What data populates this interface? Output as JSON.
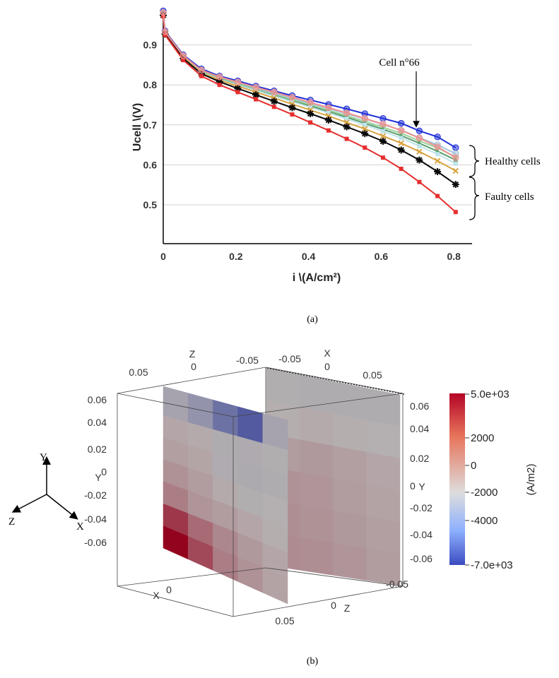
{
  "chart_data": [
    {
      "type": "line",
      "panel_label": "(a)",
      "xlabel": "i \\(A/cm²)",
      "ylabel": "Ucell \\(V)",
      "xlim": [
        0,
        0.85
      ],
      "ylim": [
        0.4,
        1.0
      ],
      "x_ticks": [
        0,
        0.2,
        0.4,
        0.6,
        0.8
      ],
      "x_tick_labels": [
        "0",
        "0.2",
        "0.4",
        "0.6",
        "0.8"
      ],
      "y_ticks": [
        0.5,
        0.6,
        0.7,
        0.8,
        0.9
      ],
      "y_tick_labels": [
        "0.5",
        "0.6",
        "0.7",
        "0.8",
        "0.9"
      ],
      "grid": "horizontal",
      "x": [
        0,
        0.005,
        0.055,
        0.105,
        0.155,
        0.205,
        0.255,
        0.305,
        0.355,
        0.405,
        0.455,
        0.505,
        0.555,
        0.605,
        0.655,
        0.705,
        0.755,
        0.805
      ],
      "series": [
        {
          "marker": "circle",
          "color": "#1f2fd6",
          "values": [
            0.985,
            0.935,
            0.875,
            0.84,
            0.822,
            0.81,
            0.797,
            0.785,
            0.773,
            0.762,
            0.751,
            0.74,
            0.728,
            0.716,
            0.704,
            0.685,
            0.67,
            0.643
          ]
        },
        {
          "marker": "circle",
          "color": "#a3c4dd",
          "values": [
            0.98,
            0.932,
            0.872,
            0.836,
            0.818,
            0.805,
            0.792,
            0.779,
            0.766,
            0.754,
            0.741,
            0.728,
            0.715,
            0.701,
            0.687,
            0.668,
            0.65,
            0.628
          ]
        },
        {
          "marker": "diamond",
          "color": "#9bd29b",
          "values": [
            0.978,
            0.931,
            0.871,
            0.834,
            0.816,
            0.803,
            0.789,
            0.776,
            0.763,
            0.75,
            0.737,
            0.723,
            0.709,
            0.694,
            0.679,
            0.66,
            0.642,
            0.62
          ]
        },
        {
          "marker": "triangle",
          "color": "#5b9e6e",
          "values": [
            0.977,
            0.93,
            0.87,
            0.833,
            0.815,
            0.801,
            0.787,
            0.774,
            0.76,
            0.747,
            0.733,
            0.719,
            0.704,
            0.689,
            0.673,
            0.654,
            0.634,
            0.612
          ]
        },
        {
          "marker": "square",
          "color": "#bfe3ea",
          "values": [
            0.976,
            0.929,
            0.869,
            0.832,
            0.814,
            0.8,
            0.786,
            0.772,
            0.758,
            0.744,
            0.73,
            0.715,
            0.7,
            0.684,
            0.667,
            0.647,
            0.627,
            0.603
          ]
        },
        {
          "marker": "cross",
          "color": "#d9a441",
          "values": [
            0.975,
            0.928,
            0.868,
            0.83,
            0.812,
            0.797,
            0.782,
            0.767,
            0.752,
            0.737,
            0.722,
            0.706,
            0.69,
            0.672,
            0.654,
            0.633,
            0.61,
            0.585
          ]
        },
        {
          "marker": "star",
          "color": "#0a0a0a",
          "values": [
            0.974,
            0.927,
            0.866,
            0.828,
            0.808,
            0.791,
            0.775,
            0.759,
            0.743,
            0.728,
            0.712,
            0.695,
            0.678,
            0.659,
            0.637,
            0.612,
            0.583,
            0.551
          ]
        },
        {
          "marker": "square",
          "color": "#e62e2e",
          "values": [
            0.972,
            0.925,
            0.862,
            0.822,
            0.8,
            0.782,
            0.764,
            0.745,
            0.726,
            0.706,
            0.686,
            0.665,
            0.643,
            0.618,
            0.59,
            0.557,
            0.522,
            0.482
          ]
        },
        {
          "marker": "circle",
          "color": "#f0908f",
          "values": [
            0.981,
            0.933,
            0.873,
            0.837,
            0.82,
            0.807,
            0.794,
            0.782,
            0.769,
            0.756,
            0.743,
            0.73,
            0.716,
            0.702,
            0.686,
            0.667,
            0.645,
            0.618
          ]
        }
      ],
      "annotations": {
        "cell_label": "Cell n°66",
        "healthy_label": "Healthy cells",
        "faulty_label": "Faulty cells"
      }
    },
    {
      "type": "heatmap",
      "panel_label": "(b)",
      "colorbar_title": "(A/m2)",
      "colorbar_ticks": [
        "5.0e+03",
        "2000",
        "0",
        "-2000",
        "-4000",
        "-7.0e+03"
      ],
      "colorbar_range": [
        -7000,
        5000
      ],
      "colorbar_colors": [
        "#b40426",
        "#e7745b",
        "#dddddd",
        "#8db0fe",
        "#3b4cc0"
      ],
      "axis_labels": {
        "x": "X",
        "y": "Y",
        "z": "Z"
      },
      "top_z_ticks": [
        "0.05",
        "0",
        "-0.05"
      ],
      "top_x_ticks": [
        "-0.05",
        "0",
        "0.05"
      ],
      "left_y_ticks": [
        "0.06",
        "0.04",
        "0.02",
        "0",
        "-0.02",
        "-0.04",
        "-0.06"
      ],
      "right_y_ticks": [
        "0.06",
        "0.04",
        "0.02",
        "0",
        "-0.02",
        "-0.04",
        "-0.06"
      ],
      "bottom_x_ticks": [
        "0"
      ],
      "bottom_z_ticks": [
        "0.05",
        "0",
        "-0.05"
      ],
      "triad": {
        "y": "Y",
        "z": "Z",
        "x": "X"
      },
      "plane1_values": [
        [
          300,
          200,
          -300,
          -400,
          -200
        ],
        [
          500,
          350,
          -350,
          -450,
          -300
        ],
        [
          900,
          600,
          200,
          -200,
          -100
        ],
        [
          1500,
          800,
          600,
          300,
          100
        ],
        [
          3500,
          2000,
          1200,
          700,
          300
        ],
        [
          5000,
          3000,
          1500,
          900,
          400
        ]
      ],
      "plane1_top_values": [
        -800,
        -1800,
        -3800,
        -5200,
        -800
      ],
      "plane2_values": [
        [
          -200,
          -300,
          -300,
          -300
        ],
        [
          100,
          200,
          100,
          -100
        ],
        [
          600,
          700,
          500,
          300
        ],
        [
          900,
          800,
          600,
          400
        ],
        [
          1000,
          900,
          700,
          500
        ],
        [
          1100,
          1000,
          800,
          600
        ]
      ]
    }
  ]
}
